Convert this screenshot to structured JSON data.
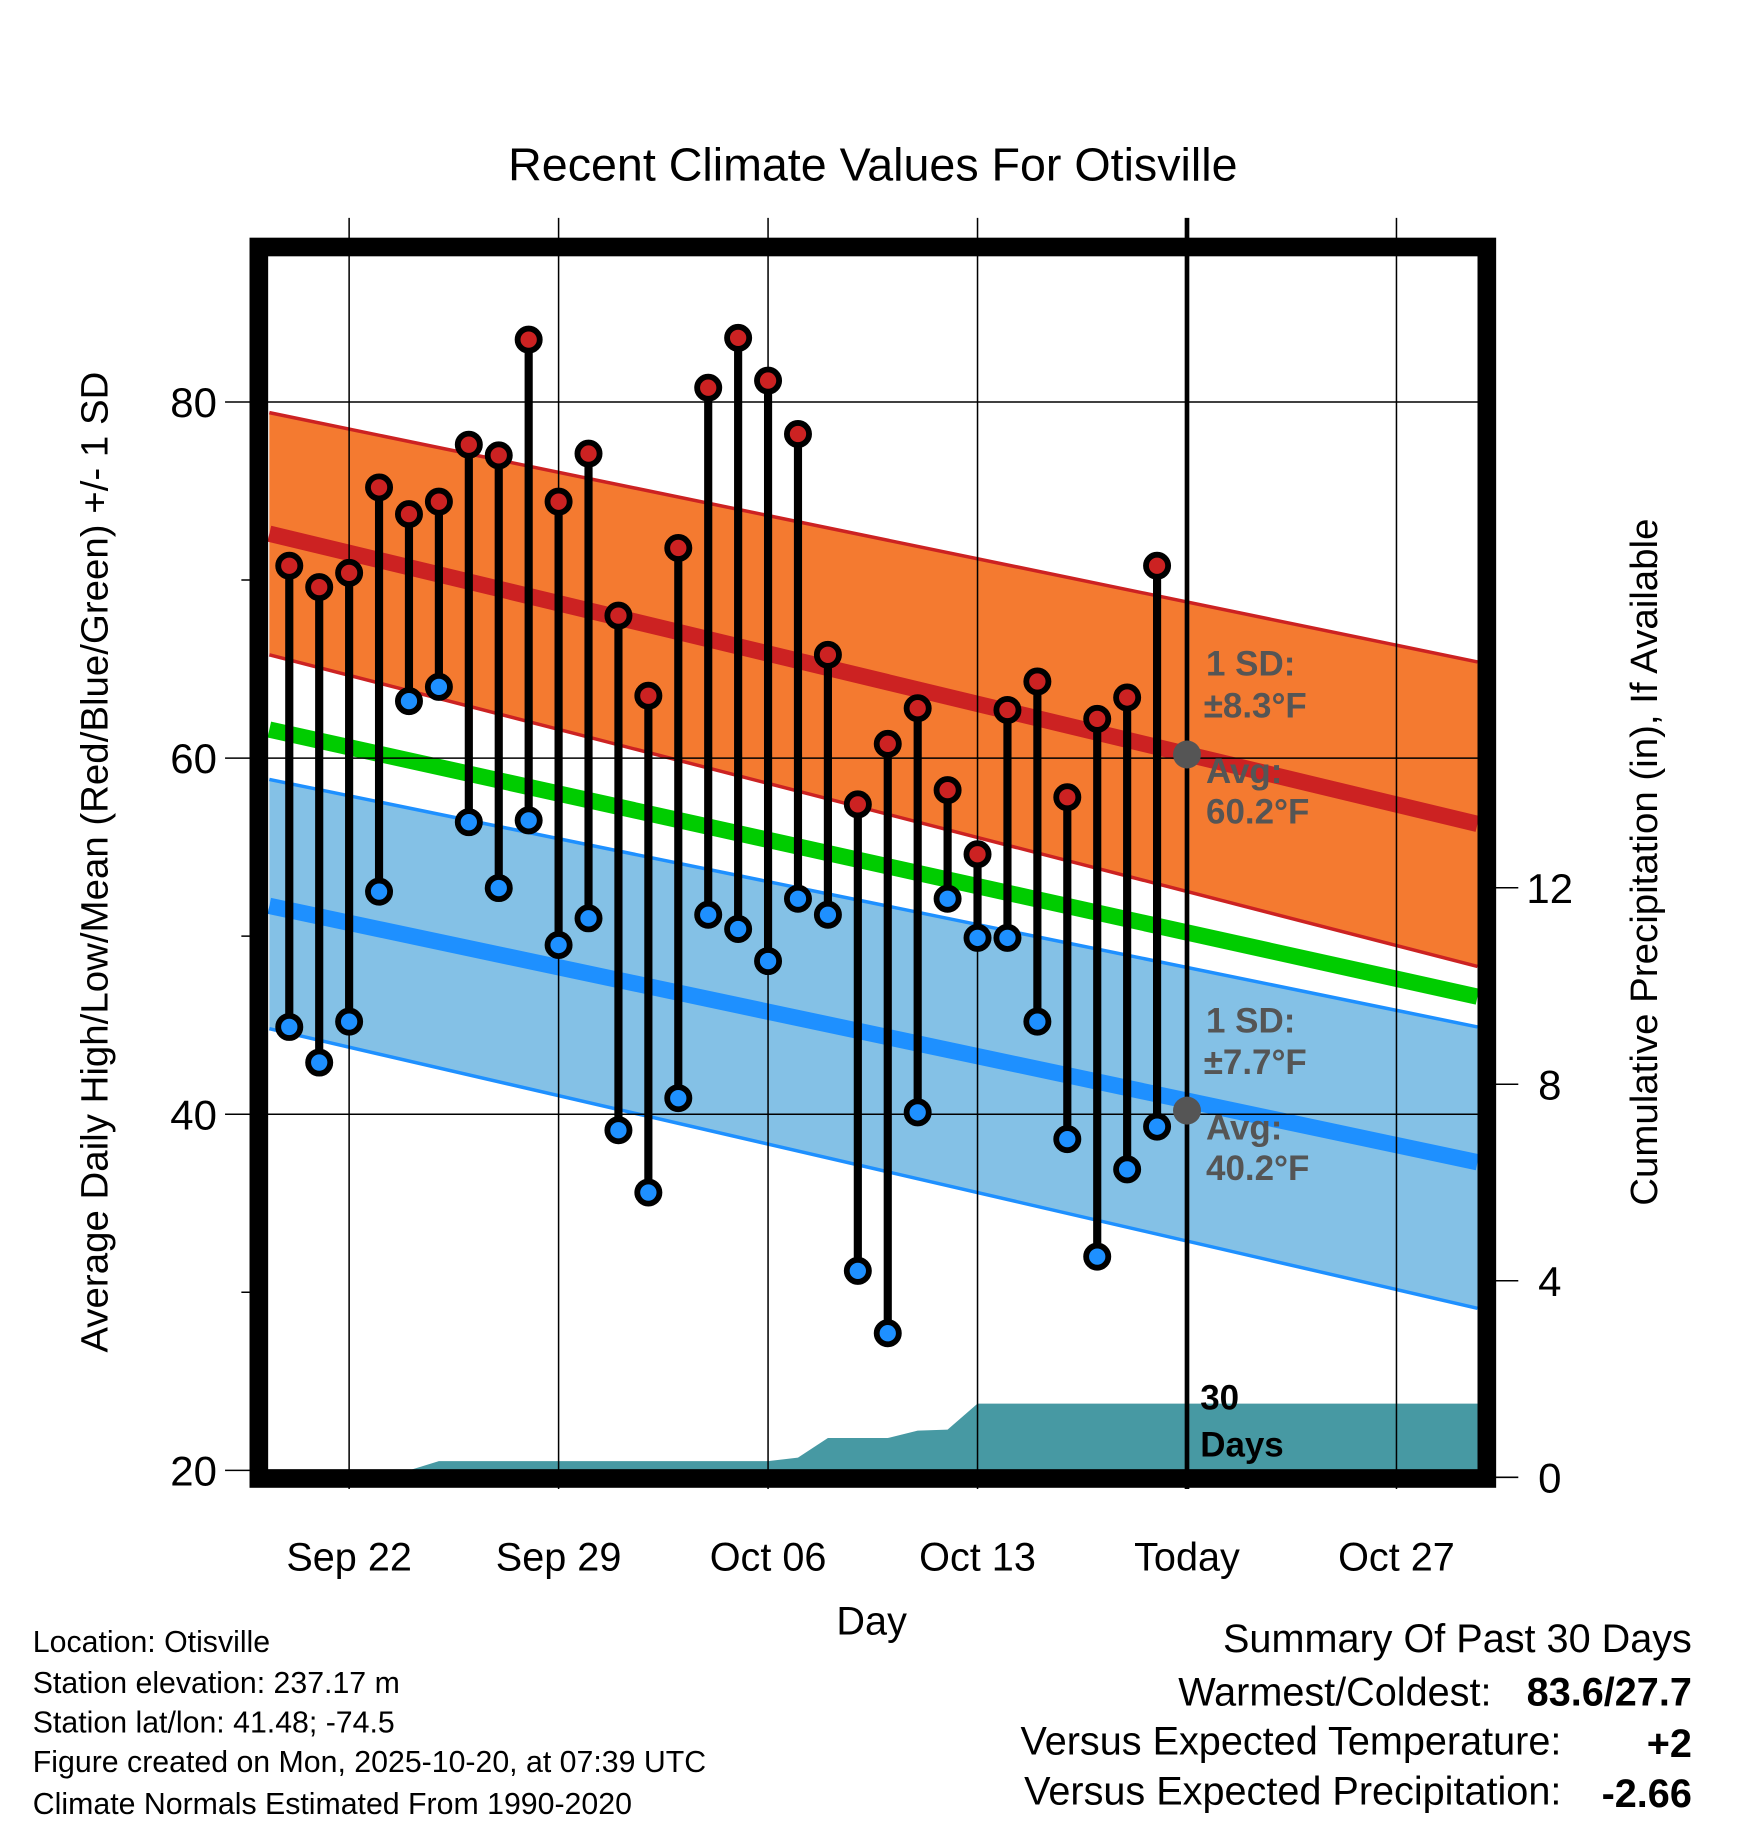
{
  "chart_data": {
    "type": "line",
    "title": "Recent Climate Values For Otisville",
    "xlabel": "Day",
    "ylabel": "Average Daily High/Low/Mean (Red/Blue/Green) +/- 1 SD",
    "ylabel_right": "Cumulative Precipitation (in), If Available",
    "ylim": [
      20,
      90
    ],
    "ylim_right": [
      0,
      18
    ],
    "xlim": [
      "2025-09-19T08:00",
      "2025-10-29T17:00"
    ],
    "yticks": [
      20,
      40,
      60,
      80
    ],
    "yticks_minor": [
      30,
      50,
      70
    ],
    "yticks_right": [
      0,
      4,
      8,
      12
    ],
    "grid": true,
    "xticks": [
      {
        "date": "2025-09-22",
        "label": "Sep 22"
      },
      {
        "date": "2025-09-29",
        "label": "Sep 29"
      },
      {
        "date": "2025-10-06",
        "label": "Oct 06"
      },
      {
        "date": "2025-10-13",
        "label": "Oct 13"
      },
      {
        "date": "2025-10-20",
        "label": "Today"
      },
      {
        "date": "2025-10-27",
        "label": "Oct 27"
      }
    ],
    "dates": [
      "2025-09-20",
      "2025-09-21",
      "2025-09-22",
      "2025-09-23",
      "2025-09-24",
      "2025-09-25",
      "2025-09-26",
      "2025-09-27",
      "2025-09-28",
      "2025-09-29",
      "2025-09-30",
      "2025-10-01",
      "2025-10-02",
      "2025-10-03",
      "2025-10-04",
      "2025-10-05",
      "2025-10-06",
      "2025-10-07",
      "2025-10-08",
      "2025-10-09",
      "2025-10-10",
      "2025-10-11",
      "2025-10-12",
      "2025-10-13",
      "2025-10-14",
      "2025-10-15",
      "2025-10-16",
      "2025-10-17",
      "2025-10-18",
      "2025-10-19"
    ],
    "series": [
      {
        "name": "Daily High",
        "color": "#cc2222",
        "values": [
          70.8,
          69.6,
          70.4,
          75.2,
          73.7,
          74.4,
          77.6,
          77.0,
          83.5,
          74.4,
          77.1,
          68.0,
          63.5,
          71.8,
          80.8,
          83.6,
          81.2,
          78.2,
          65.8,
          57.4,
          60.8,
          62.8,
          58.2,
          54.6,
          62.7,
          64.3,
          57.8,
          62.2,
          63.4,
          70.8
        ]
      },
      {
        "name": "Daily Low",
        "color": "#1e90ff",
        "values": [
          44.9,
          42.9,
          45.2,
          52.5,
          63.2,
          64.0,
          56.4,
          52.7,
          56.5,
          49.5,
          51.0,
          39.1,
          35.6,
          40.9,
          51.2,
          50.4,
          48.6,
          52.1,
          51.2,
          31.2,
          27.7,
          40.1,
          52.1,
          49.9,
          49.9,
          45.2,
          38.6,
          32.0,
          36.9,
          39.3
        ]
      }
    ],
    "normals": {
      "high_avg": {
        "color": "#cc2222",
        "start": 72.6,
        "end": 56.3
      },
      "high_sd_upper": {
        "start": 79.4,
        "end": 65.4
      },
      "high_sd_lower": {
        "start": 65.8,
        "end": 48.3
      },
      "high_band_color": "#f47a30",
      "mean": {
        "color": "#00cc00",
        "start": 61.6,
        "end": 46.6
      },
      "low_avg": {
        "color": "#1e90ff",
        "start": 51.7,
        "end": 37.3
      },
      "low_sd_upper": {
        "start": 58.8,
        "end": 44.9
      },
      "low_sd_lower": {
        "start": 44.8,
        "end": 29.1
      },
      "low_band_color": "#84c1e6"
    },
    "precip": {
      "color": "#4799a3",
      "points": [
        {
          "date": "2025-09-19T08:00",
          "value": 0
        },
        {
          "date": "2025-09-24",
          "value": 0
        },
        {
          "date": "2025-09-25",
          "value": 0.33
        },
        {
          "date": "2025-10-06",
          "value": 0.33
        },
        {
          "date": "2025-10-07",
          "value": 0.4
        },
        {
          "date": "2025-10-08",
          "value": 0.8
        },
        {
          "date": "2025-10-10",
          "value": 0.8
        },
        {
          "date": "2025-10-11",
          "value": 0.95
        },
        {
          "date": "2025-10-12",
          "value": 0.97
        },
        {
          "date": "2025-10-13",
          "value": 1.5
        },
        {
          "date": "2025-10-29T17:00",
          "value": 1.5
        }
      ]
    },
    "today": {
      "date": "2025-10-20",
      "high_avg": 60.2,
      "low_avg": 40.2,
      "high_sd_line1": "1 SD:",
      "high_sd_line2": "±8.3°F",
      "high_avg_line1": "Avg:",
      "high_avg_line2": "60.2°F",
      "low_sd_line1": "1 SD:",
      "low_sd_line2": "±7.7°F",
      "low_avg_line1": "Avg:",
      "low_avg_line2": "40.2°F",
      "days_line1": "30",
      "days_line2": "Days"
    }
  },
  "footer": {
    "location": "Location: Otisville",
    "elevation": "Station elevation: 237.17 m",
    "latlon": "Station lat/lon: 41.48; -74.5",
    "created": "Figure created on Mon, 2025-10-20, at 07:39 UTC",
    "normals": "Climate Normals Estimated From 1990-2020"
  },
  "summary": {
    "title": "Summary Of Past 30 Days",
    "warmest_coldest_label": "Warmest/Coldest:",
    "warmest_coldest_value": "83.6/27.7",
    "temp_label": "Versus Expected Temperature:",
    "temp_value": "+2",
    "temp_color": "#d42020",
    "precip_label": "Versus Expected Precipitation:",
    "precip_value": "-2.66",
    "precip_color": "#a0522d"
  }
}
